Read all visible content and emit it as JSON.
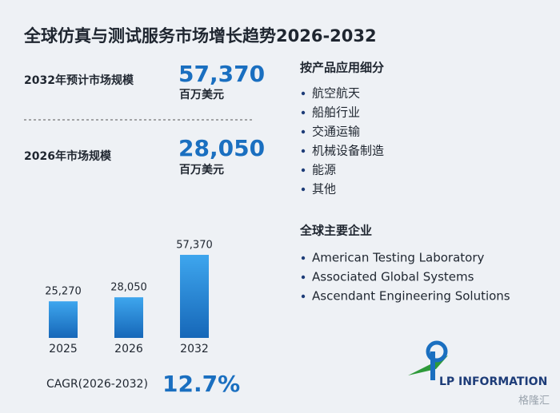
{
  "title": "全球仿真与测试服务市场增长趋势2026-2032",
  "stats": [
    {
      "label": "2032年预计市场规模",
      "value": "57,370",
      "unit": "百万美元"
    },
    {
      "label": "2026年市场规模",
      "value": "28,050",
      "unit": "百万美元"
    }
  ],
  "cagr": {
    "label": "CAGR(2026-2032)",
    "value": "12.7%"
  },
  "segments": {
    "title": "按产品应用细分",
    "items": [
      "航空航天",
      "船舶行业",
      "交通运输",
      "机械设备制造",
      "能源",
      "其他"
    ]
  },
  "companies": {
    "title": "全球主要企业",
    "items": [
      "American Testing Laboratory",
      "Associated Global Systems",
      "Ascendant Engineering Solutions"
    ]
  },
  "logo": "LP INFORMATION",
  "source_watermark": "格隆汇",
  "chart_data": {
    "type": "bar",
    "categories": [
      "2025",
      "2026",
      "2032"
    ],
    "values": [
      25270,
      28050,
      57370
    ],
    "value_labels": [
      "25,270",
      "28,050",
      "57,370"
    ],
    "color": "#1a7fd0"
  }
}
